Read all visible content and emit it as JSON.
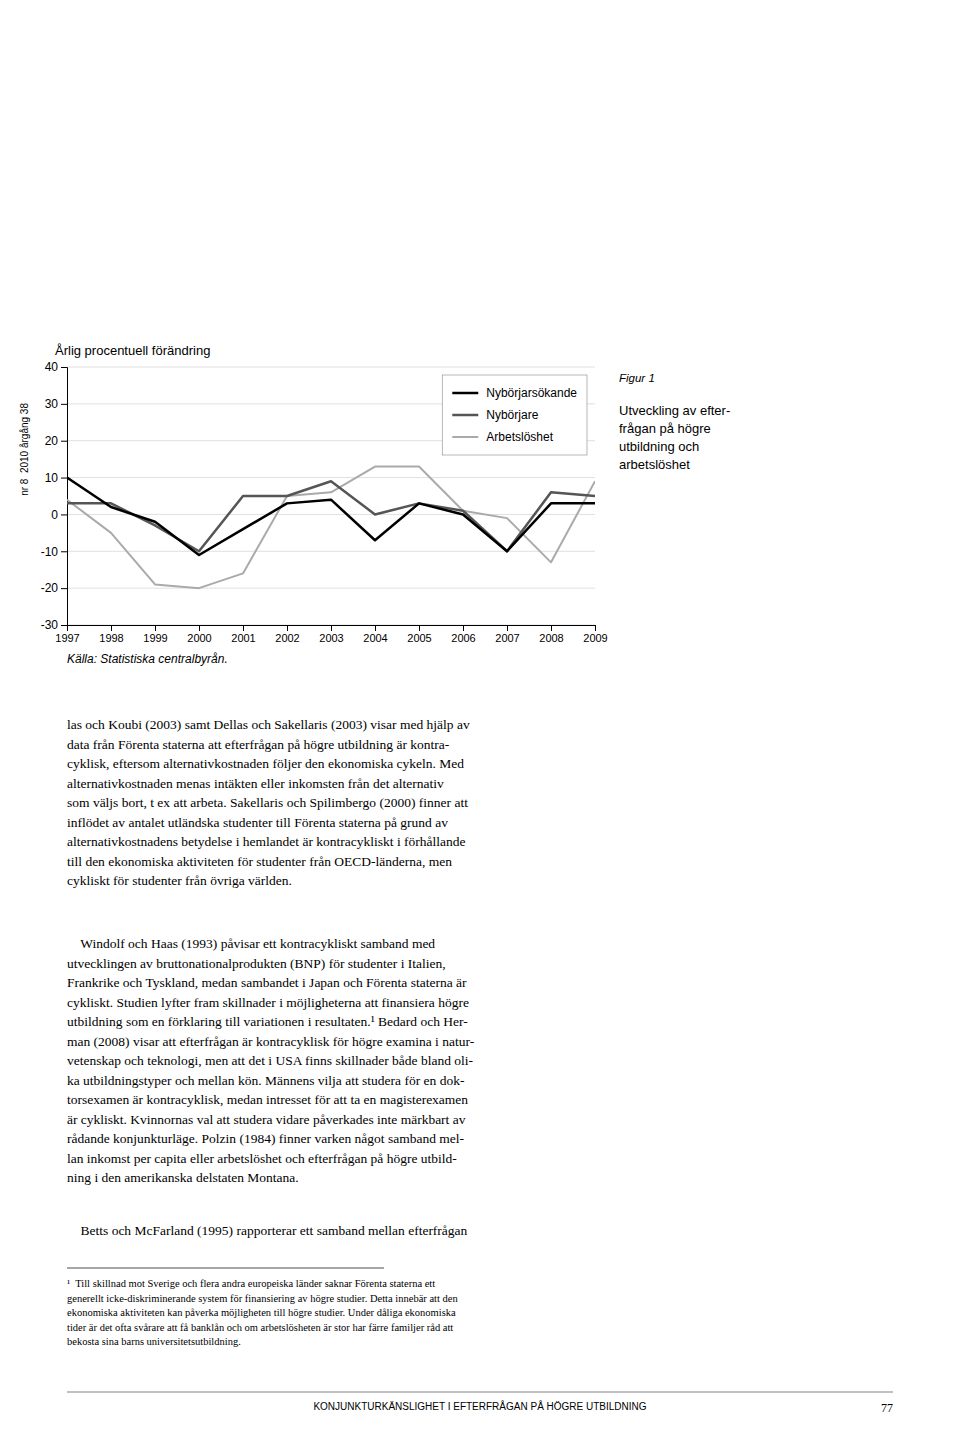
{
  "chart_data": {
    "type": "line",
    "ylabel": "Årlig procentuell förändring",
    "x": [
      1997,
      1998,
      1999,
      2000,
      2001,
      2002,
      2003,
      2004,
      2005,
      2006,
      2007,
      2008,
      2009
    ],
    "series": [
      {
        "name": "Nybörjarsökande",
        "color": "#000000",
        "values": [
          10,
          2,
          -2,
          -11,
          -4,
          3,
          4,
          -7,
          3,
          0,
          -10,
          3,
          3
        ]
      },
      {
        "name": "Nybörjare",
        "color": "#555555",
        "values": [
          3,
          3,
          -3,
          -10,
          5,
          5,
          9,
          0,
          3,
          1,
          -10,
          6,
          5
        ]
      },
      {
        "name": "Arbetslöshet",
        "color": "#aaaaaa",
        "values": [
          4,
          -5,
          -19,
          -20,
          -16,
          5,
          6,
          13,
          13,
          1,
          -1,
          -13,
          9
        ]
      }
    ],
    "xlim": [
      1997,
      2009
    ],
    "xticks": [
      1997,
      1998,
      1999,
      2000,
      2001,
      2002,
      2003,
      2004,
      2005,
      2006,
      2007,
      2008,
      2009
    ],
    "ylim": [
      -30,
      40
    ],
    "yticks": [
      -30,
      -20,
      -10,
      0,
      10,
      20,
      30,
      40
    ],
    "grid": true,
    "legend": "top-right"
  },
  "figure_label": "Figur 1",
  "figure_caption": "Utveckling av efter-\nfrågan på högre\nutbildning och\narbetslöshet",
  "source": "Källa: Statistiska centralbyrån.",
  "paragraphs": [
    "las och Koubi (2003) samt Dellas och Sakellaris (2003) visar med hjälp av\ndata från Förenta staterna att efterfrågan på högre utbildning är kontra-\ncyklisk, eftersom alternativkostnaden följer den ekonomiska cykeln. Med\nalternativkostnaden menas intäkten eller inkomsten från det alternativ\nsom väljs bort, t ex att arbeta. Sakellaris och Spilimbergo (2000) finner att\ninflödet av antalet utländska studenter till Förenta staterna på grund av\nalternativkostnadens betydelse i hemlandet är kontracykliskt i förhållande\ntill den ekonomiska aktiviteten för studenter från OECD-länderna, men\ncykliskt för studenter från övriga världen.",
    "    Windolf och Haas (1993) påvisar ett kontracykliskt samband med\nutvecklingen av bruttonationalprodukten (BNP) för studenter i Italien,\nFrankrike och Tyskland, medan sambandet i Japan och Förenta staterna är\ncykliskt. Studien lyfter fram skillnader i möjligheterna att finansiera högre\nutbildning som en förklaring till variationen i resultaten.¹ Bedard och Her-\nman (2008) visar att efterfrågan är kontracyklisk för högre examina i natur-\nvetenskap och teknologi, men att det i USA finns skillnader både bland oli-\nka utbildningstyper och mellan kön. Männens vilja att studera för en dok-\ntorsexamen är kontracyklisk, medan intresset för att ta en magisterexamen\när cykliskt. Kvinnornas val att studera vidare påverkades inte märkbart av\nrådande konjunkturläge. Polzin (1984) finner varken något samband mel-\nlan inkomst per capita eller arbetslöshet och efterfrågan på högre utbild-\nning i den amerikanska delstaten Montana.",
    "    Betts och McFarland (1995) rapporterar ett samband mellan efterfrågan"
  ],
  "footnote": "¹  Till skillnad mot Sverige och flera andra europeiska länder saknar Förenta staterna ett\ngenerellt icke-diskriminerande system för finansiering av högre studier. Detta innebär att den\nekonomiska aktiviteten kan påverka möjligheten till högre studier. Under dåliga ekonomiska\ntider är det ofta svårare att få banklån och om arbetslösheten är stor har färre familjer råd att\nbekosta sina barns universitetsutbildning.",
  "footer": "KONJUNKTURKÄNSLIGHET I EFTERFRÅGAN PÅ HÖGRE UTBILDNING",
  "page_number": "77",
  "side_text": "nr 8  2010 årgång 38"
}
